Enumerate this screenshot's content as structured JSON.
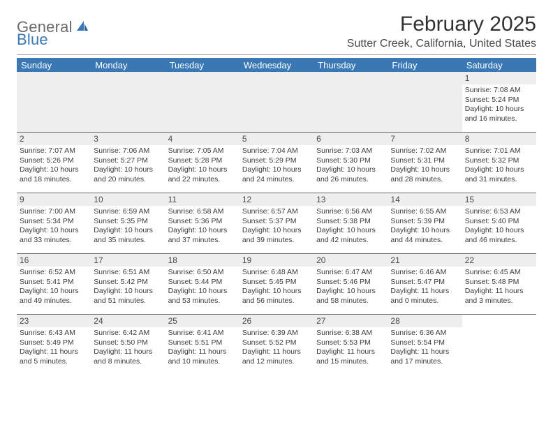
{
  "logo": {
    "general": "General",
    "blue": "Blue"
  },
  "title": "February 2025",
  "location": "Sutter Creek, California, United States",
  "colors": {
    "header_bar": "#3a78b5",
    "header_text": "#ffffff",
    "divider": "#9a9a9a",
    "daynum_bg": "#eeeeee",
    "body_text": "#3b3b3b"
  },
  "daynames": [
    "Sunday",
    "Monday",
    "Tuesday",
    "Wednesday",
    "Thursday",
    "Friday",
    "Saturday"
  ],
  "weeks": [
    [
      {
        "empty": true
      },
      {
        "empty": true
      },
      {
        "empty": true
      },
      {
        "empty": true
      },
      {
        "empty": true
      },
      {
        "empty": true
      },
      {
        "n": "1",
        "sunrise": "Sunrise: 7:08 AM",
        "sunset": "Sunset: 5:24 PM",
        "daylight1": "Daylight: 10 hours",
        "daylight2": "and 16 minutes."
      }
    ],
    [
      {
        "n": "2",
        "sunrise": "Sunrise: 7:07 AM",
        "sunset": "Sunset: 5:26 PM",
        "daylight1": "Daylight: 10 hours",
        "daylight2": "and 18 minutes."
      },
      {
        "n": "3",
        "sunrise": "Sunrise: 7:06 AM",
        "sunset": "Sunset: 5:27 PM",
        "daylight1": "Daylight: 10 hours",
        "daylight2": "and 20 minutes."
      },
      {
        "n": "4",
        "sunrise": "Sunrise: 7:05 AM",
        "sunset": "Sunset: 5:28 PM",
        "daylight1": "Daylight: 10 hours",
        "daylight2": "and 22 minutes."
      },
      {
        "n": "5",
        "sunrise": "Sunrise: 7:04 AM",
        "sunset": "Sunset: 5:29 PM",
        "daylight1": "Daylight: 10 hours",
        "daylight2": "and 24 minutes."
      },
      {
        "n": "6",
        "sunrise": "Sunrise: 7:03 AM",
        "sunset": "Sunset: 5:30 PM",
        "daylight1": "Daylight: 10 hours",
        "daylight2": "and 26 minutes."
      },
      {
        "n": "7",
        "sunrise": "Sunrise: 7:02 AM",
        "sunset": "Sunset: 5:31 PM",
        "daylight1": "Daylight: 10 hours",
        "daylight2": "and 28 minutes."
      },
      {
        "n": "8",
        "sunrise": "Sunrise: 7:01 AM",
        "sunset": "Sunset: 5:32 PM",
        "daylight1": "Daylight: 10 hours",
        "daylight2": "and 31 minutes."
      }
    ],
    [
      {
        "n": "9",
        "sunrise": "Sunrise: 7:00 AM",
        "sunset": "Sunset: 5:34 PM",
        "daylight1": "Daylight: 10 hours",
        "daylight2": "and 33 minutes."
      },
      {
        "n": "10",
        "sunrise": "Sunrise: 6:59 AM",
        "sunset": "Sunset: 5:35 PM",
        "daylight1": "Daylight: 10 hours",
        "daylight2": "and 35 minutes."
      },
      {
        "n": "11",
        "sunrise": "Sunrise: 6:58 AM",
        "sunset": "Sunset: 5:36 PM",
        "daylight1": "Daylight: 10 hours",
        "daylight2": "and 37 minutes."
      },
      {
        "n": "12",
        "sunrise": "Sunrise: 6:57 AM",
        "sunset": "Sunset: 5:37 PM",
        "daylight1": "Daylight: 10 hours",
        "daylight2": "and 39 minutes."
      },
      {
        "n": "13",
        "sunrise": "Sunrise: 6:56 AM",
        "sunset": "Sunset: 5:38 PM",
        "daylight1": "Daylight: 10 hours",
        "daylight2": "and 42 minutes."
      },
      {
        "n": "14",
        "sunrise": "Sunrise: 6:55 AM",
        "sunset": "Sunset: 5:39 PM",
        "daylight1": "Daylight: 10 hours",
        "daylight2": "and 44 minutes."
      },
      {
        "n": "15",
        "sunrise": "Sunrise: 6:53 AM",
        "sunset": "Sunset: 5:40 PM",
        "daylight1": "Daylight: 10 hours",
        "daylight2": "and 46 minutes."
      }
    ],
    [
      {
        "n": "16",
        "sunrise": "Sunrise: 6:52 AM",
        "sunset": "Sunset: 5:41 PM",
        "daylight1": "Daylight: 10 hours",
        "daylight2": "and 49 minutes."
      },
      {
        "n": "17",
        "sunrise": "Sunrise: 6:51 AM",
        "sunset": "Sunset: 5:42 PM",
        "daylight1": "Daylight: 10 hours",
        "daylight2": "and 51 minutes."
      },
      {
        "n": "18",
        "sunrise": "Sunrise: 6:50 AM",
        "sunset": "Sunset: 5:44 PM",
        "daylight1": "Daylight: 10 hours",
        "daylight2": "and 53 minutes."
      },
      {
        "n": "19",
        "sunrise": "Sunrise: 6:48 AM",
        "sunset": "Sunset: 5:45 PM",
        "daylight1": "Daylight: 10 hours",
        "daylight2": "and 56 minutes."
      },
      {
        "n": "20",
        "sunrise": "Sunrise: 6:47 AM",
        "sunset": "Sunset: 5:46 PM",
        "daylight1": "Daylight: 10 hours",
        "daylight2": "and 58 minutes."
      },
      {
        "n": "21",
        "sunrise": "Sunrise: 6:46 AM",
        "sunset": "Sunset: 5:47 PM",
        "daylight1": "Daylight: 11 hours",
        "daylight2": "and 0 minutes."
      },
      {
        "n": "22",
        "sunrise": "Sunrise: 6:45 AM",
        "sunset": "Sunset: 5:48 PM",
        "daylight1": "Daylight: 11 hours",
        "daylight2": "and 3 minutes."
      }
    ],
    [
      {
        "n": "23",
        "sunrise": "Sunrise: 6:43 AM",
        "sunset": "Sunset: 5:49 PM",
        "daylight1": "Daylight: 11 hours",
        "daylight2": "and 5 minutes."
      },
      {
        "n": "24",
        "sunrise": "Sunrise: 6:42 AM",
        "sunset": "Sunset: 5:50 PM",
        "daylight1": "Daylight: 11 hours",
        "daylight2": "and 8 minutes."
      },
      {
        "n": "25",
        "sunrise": "Sunrise: 6:41 AM",
        "sunset": "Sunset: 5:51 PM",
        "daylight1": "Daylight: 11 hours",
        "daylight2": "and 10 minutes."
      },
      {
        "n": "26",
        "sunrise": "Sunrise: 6:39 AM",
        "sunset": "Sunset: 5:52 PM",
        "daylight1": "Daylight: 11 hours",
        "daylight2": "and 12 minutes."
      },
      {
        "n": "27",
        "sunrise": "Sunrise: 6:38 AM",
        "sunset": "Sunset: 5:53 PM",
        "daylight1": "Daylight: 11 hours",
        "daylight2": "and 15 minutes."
      },
      {
        "n": "28",
        "sunrise": "Sunrise: 6:36 AM",
        "sunset": "Sunset: 5:54 PM",
        "daylight1": "Daylight: 11 hours",
        "daylight2": "and 17 minutes."
      },
      {
        "empty": true,
        "blank": true
      }
    ]
  ]
}
